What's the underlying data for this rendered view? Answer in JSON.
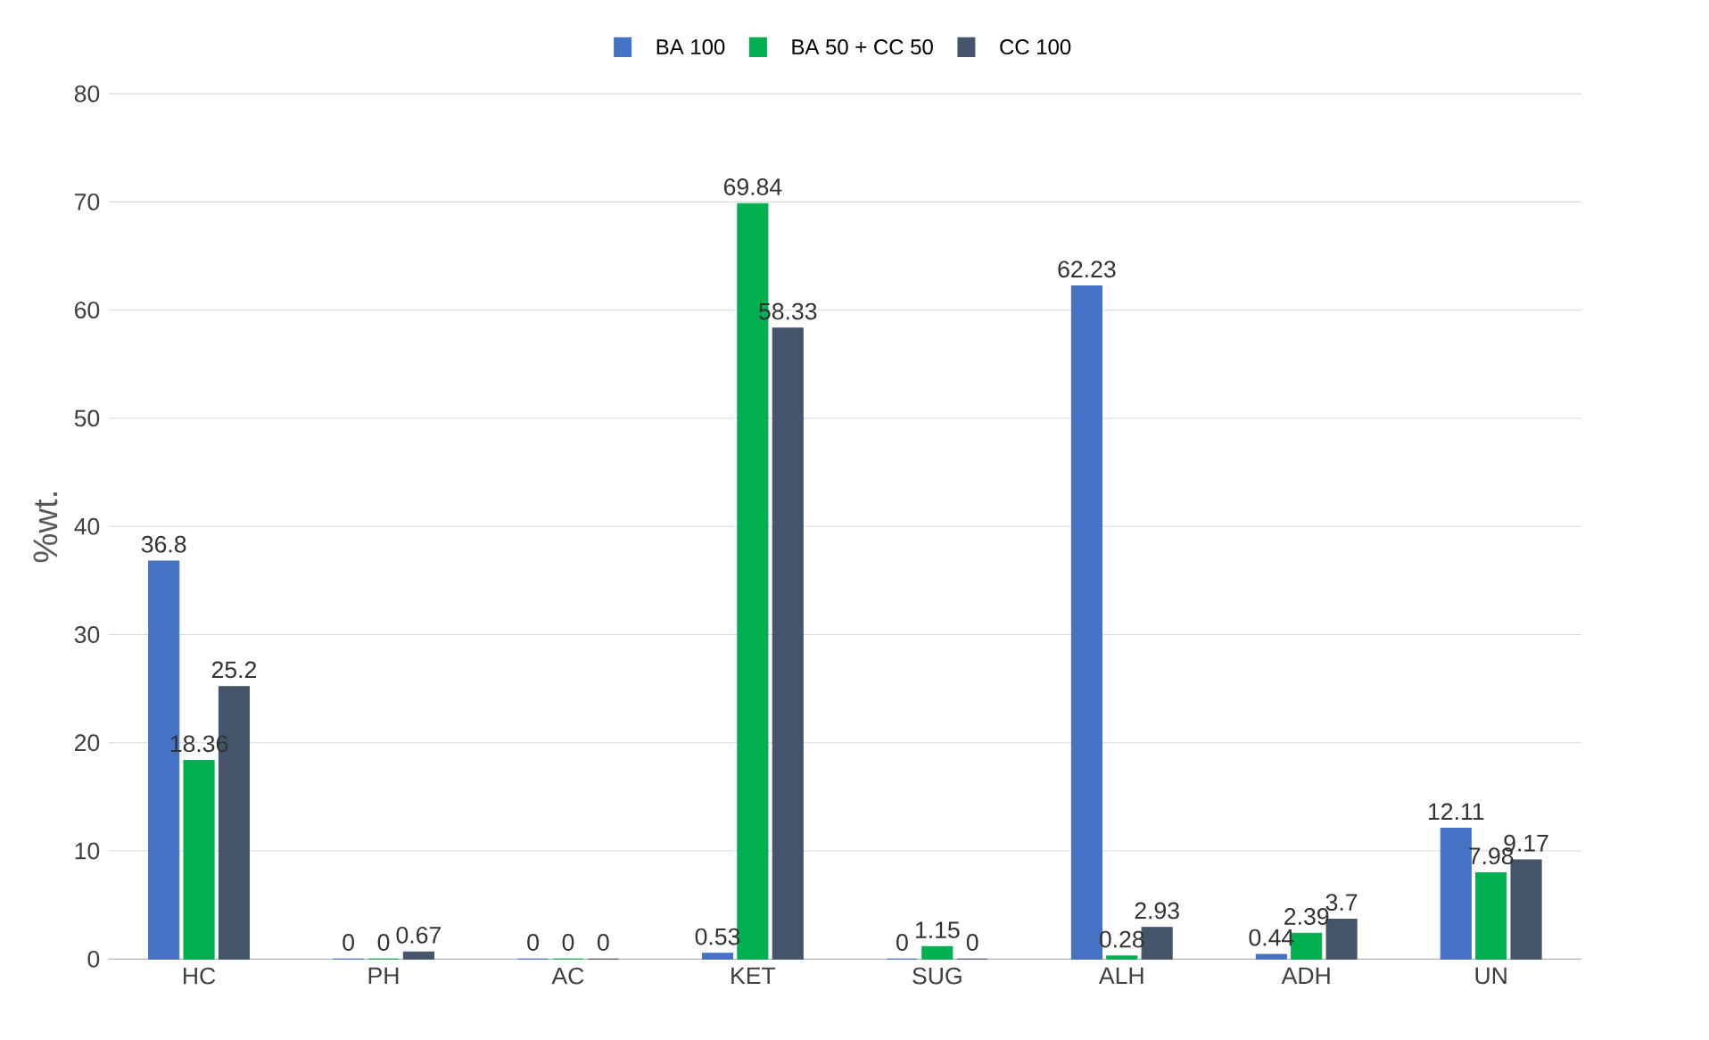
{
  "chart_data": {
    "type": "bar",
    "ylabel": "%wt.",
    "categories": [
      "HC",
      "PH",
      "AC",
      "KET",
      "SUG",
      "ALH",
      "ADH",
      "UN"
    ],
    "series": [
      {
        "name": "BA 100",
        "color": "#4472c4",
        "values": [
          36.8,
          0,
          0,
          0.53,
          0,
          62.23,
          0.44,
          12.11
        ]
      },
      {
        "name": "BA 50 + CC 50",
        "color": "#00b050",
        "values": [
          18.36,
          0,
          0,
          69.84,
          1.15,
          0.28,
          2.39,
          7.98
        ]
      },
      {
        "name": "CC 100",
        "color": "#44546a",
        "values": [
          25.2,
          0.67,
          0,
          58.33,
          0,
          2.93,
          3.7,
          9.17
        ]
      }
    ],
    "ylim": [
      0,
      80
    ],
    "yticks": [
      0,
      10,
      20,
      30,
      40,
      50,
      60,
      70,
      80
    ],
    "grid": "y",
    "legend": "top",
    "data_labels": true
  }
}
